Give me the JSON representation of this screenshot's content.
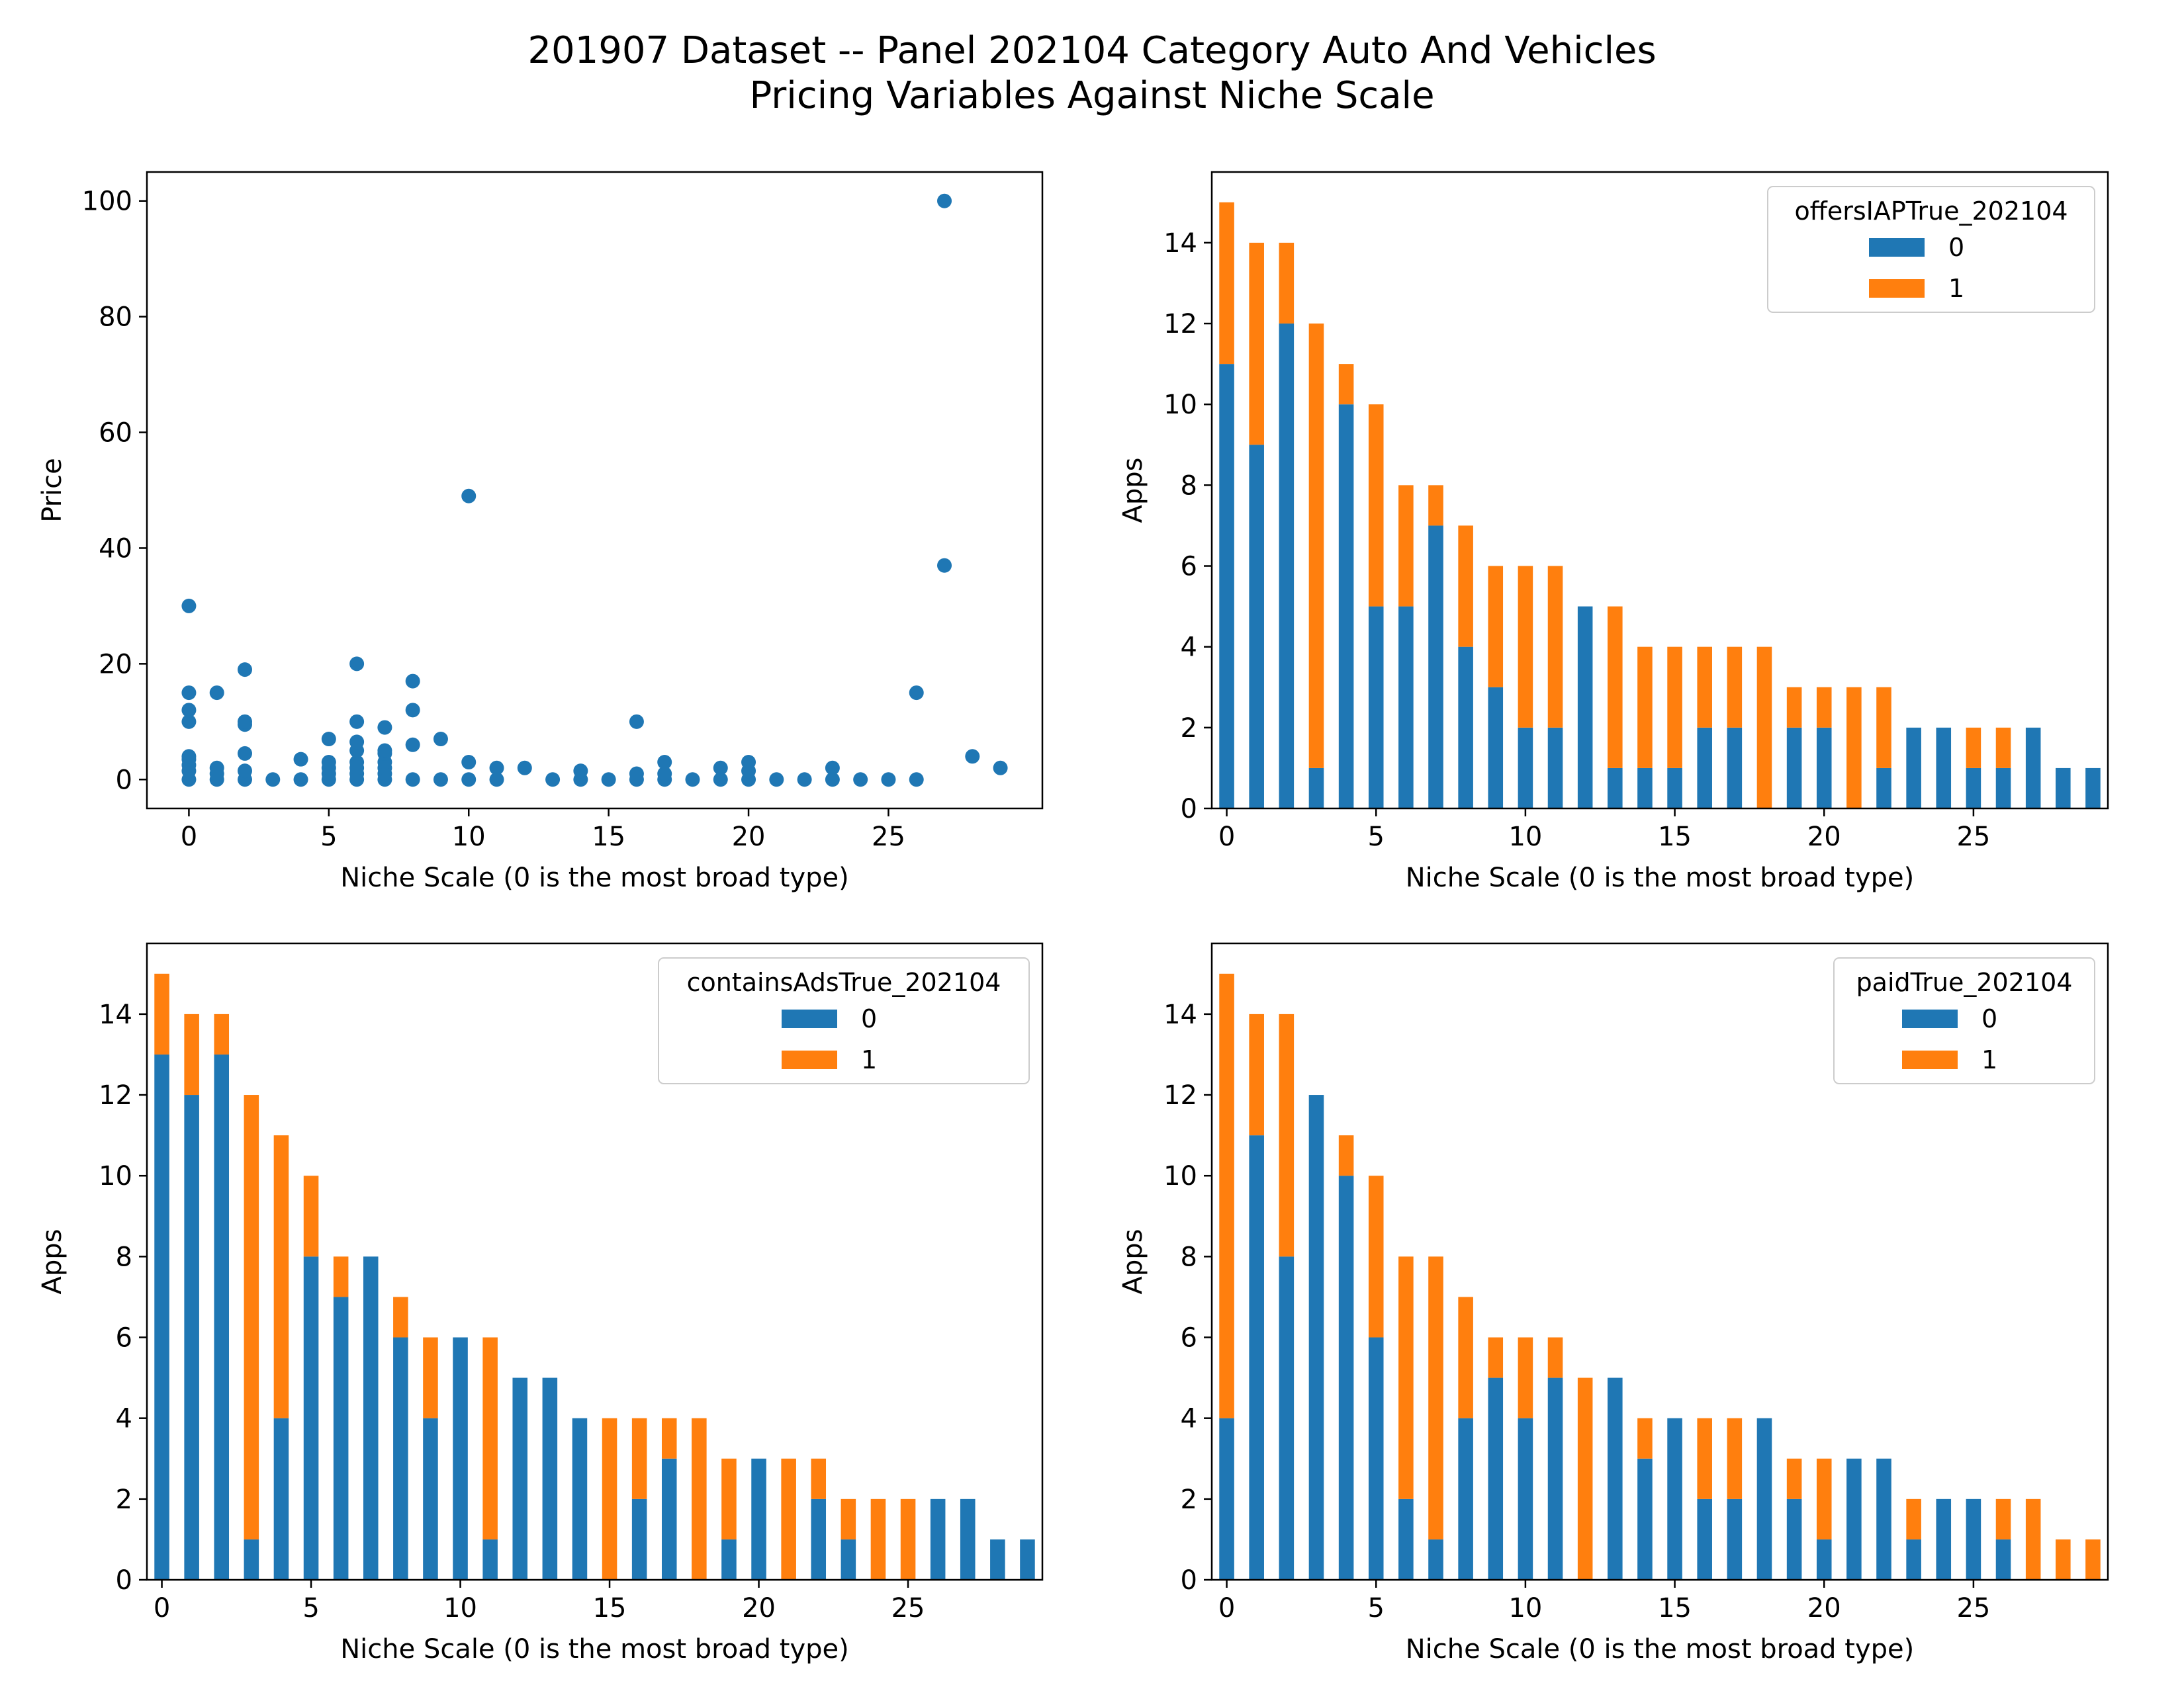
{
  "figure": {
    "title_line1": "201907 Dataset -- Panel 202104 Category Auto And Vehicles",
    "title_line2": "Pricing Variables Against Niche Scale"
  },
  "colors": {
    "series0": "#1f77b4",
    "series1": "#ff7f0e"
  },
  "chart_data": [
    {
      "type": "scatter",
      "xlabel": "Niche Scale (0 is the most broad type)",
      "ylabel": "Price",
      "xlim": [
        -1.5,
        30.5
      ],
      "ylim": [
        -5,
        105
      ],
      "xticks": [
        0,
        5,
        10,
        15,
        20,
        25
      ],
      "yticks": [
        0,
        20,
        40,
        60,
        80,
        100
      ],
      "points": [
        [
          0,
          0
        ],
        [
          0,
          1.5
        ],
        [
          0,
          2.5
        ],
        [
          0,
          3.5
        ],
        [
          0,
          4
        ],
        [
          0,
          10
        ],
        [
          0,
          12
        ],
        [
          0,
          15
        ],
        [
          0,
          30
        ],
        [
          1,
          0
        ],
        [
          1,
          1
        ],
        [
          1,
          2
        ],
        [
          1,
          15
        ],
        [
          2,
          0
        ],
        [
          2,
          1.5
        ],
        [
          2,
          4.5
        ],
        [
          2,
          9.5
        ],
        [
          2,
          10
        ],
        [
          2,
          19
        ],
        [
          3,
          0
        ],
        [
          4,
          0
        ],
        [
          4,
          3.5
        ],
        [
          5,
          0
        ],
        [
          5,
          1
        ],
        [
          5,
          2
        ],
        [
          5,
          3
        ],
        [
          5,
          7
        ],
        [
          6,
          0
        ],
        [
          6,
          1
        ],
        [
          6,
          2
        ],
        [
          6,
          3
        ],
        [
          6,
          5
        ],
        [
          6,
          6.5
        ],
        [
          6,
          10
        ],
        [
          6,
          20
        ],
        [
          7,
          0
        ],
        [
          7,
          1
        ],
        [
          7,
          2
        ],
        [
          7,
          3
        ],
        [
          7,
          4.5
        ],
        [
          7,
          5
        ],
        [
          7,
          9
        ],
        [
          8,
          0
        ],
        [
          8,
          6
        ],
        [
          8,
          12
        ],
        [
          8,
          17
        ],
        [
          9,
          0
        ],
        [
          9,
          7
        ],
        [
          10,
          0
        ],
        [
          10,
          3
        ],
        [
          10,
          49
        ],
        [
          11,
          0
        ],
        [
          11,
          2
        ],
        [
          12,
          2
        ],
        [
          13,
          0
        ],
        [
          14,
          0
        ],
        [
          14,
          1.5
        ],
        [
          15,
          0
        ],
        [
          16,
          0
        ],
        [
          16,
          1
        ],
        [
          16,
          10
        ],
        [
          17,
          0
        ],
        [
          17,
          1
        ],
        [
          17,
          3
        ],
        [
          18,
          0
        ],
        [
          19,
          0
        ],
        [
          19,
          2
        ],
        [
          20,
          0
        ],
        [
          20,
          1.5
        ],
        [
          20,
          3
        ],
        [
          21,
          0
        ],
        [
          22,
          0
        ],
        [
          23,
          0
        ],
        [
          23,
          2
        ],
        [
          24,
          0
        ],
        [
          25,
          0
        ],
        [
          26,
          0
        ],
        [
          26,
          15
        ],
        [
          27,
          37
        ],
        [
          27,
          100
        ],
        [
          28,
          4
        ],
        [
          29,
          2
        ]
      ]
    },
    {
      "type": "bar",
      "stacked": true,
      "xlabel": "Niche Scale (0 is the most broad type)",
      "ylabel": "Apps",
      "ylim": [
        0,
        15.75
      ],
      "xticks": [
        0,
        5,
        10,
        15,
        20,
        25
      ],
      "yticks": [
        0,
        2,
        4,
        6,
        8,
        10,
        12,
        14
      ],
      "legend_title": "offersIAPTrue_202104",
      "legend_loc": "upper right",
      "categories": [
        0,
        1,
        2,
        3,
        4,
        5,
        6,
        7,
        8,
        9,
        10,
        11,
        12,
        13,
        14,
        15,
        16,
        17,
        18,
        19,
        20,
        21,
        22,
        23,
        24,
        25,
        26,
        27,
        28,
        29
      ],
      "series": [
        {
          "name": "0",
          "values": [
            11,
            9,
            12,
            1,
            10,
            5,
            5,
            7,
            4,
            3,
            2,
            2,
            5,
            1,
            1,
            1,
            2,
            2,
            0,
            2,
            2,
            0,
            1,
            2,
            2,
            1,
            1,
            2,
            1,
            1
          ]
        },
        {
          "name": "1",
          "values": [
            4,
            5,
            2,
            11,
            1,
            5,
            3,
            1,
            3,
            3,
            4,
            4,
            0,
            4,
            3,
            3,
            2,
            2,
            4,
            1,
            1,
            3,
            2,
            0,
            0,
            1,
            1,
            0,
            0,
            0
          ]
        }
      ]
    },
    {
      "type": "bar",
      "stacked": true,
      "xlabel": "Niche Scale (0 is the most broad type)",
      "ylabel": "Apps",
      "ylim": [
        0,
        15.75
      ],
      "xticks": [
        0,
        5,
        10,
        15,
        20,
        25
      ],
      "yticks": [
        0,
        2,
        4,
        6,
        8,
        10,
        12,
        14
      ],
      "legend_title": "containsAdsTrue_202104",
      "legend_loc": "upper right",
      "categories": [
        0,
        1,
        2,
        3,
        4,
        5,
        6,
        7,
        8,
        9,
        10,
        11,
        12,
        13,
        14,
        15,
        16,
        17,
        18,
        19,
        20,
        21,
        22,
        23,
        24,
        25,
        26,
        27,
        28,
        29
      ],
      "series": [
        {
          "name": "0",
          "values": [
            13,
            12,
            13,
            1,
            4,
            8,
            7,
            8,
            6,
            4,
            6,
            1,
            5,
            5,
            4,
            0,
            2,
            3,
            0,
            1,
            3,
            0,
            2,
            1,
            0,
            0,
            2,
            2,
            1,
            1
          ]
        },
        {
          "name": "1",
          "values": [
            2,
            2,
            1,
            11,
            7,
            2,
            1,
            0,
            1,
            2,
            0,
            5,
            0,
            0,
            0,
            4,
            2,
            1,
            4,
            2,
            0,
            3,
            1,
            1,
            2,
            2,
            0,
            0,
            0,
            0
          ]
        }
      ]
    },
    {
      "type": "bar",
      "stacked": true,
      "xlabel": "Niche Scale (0 is the most broad type)",
      "ylabel": "Apps",
      "ylim": [
        0,
        15.75
      ],
      "xticks": [
        0,
        5,
        10,
        15,
        20,
        25
      ],
      "yticks": [
        0,
        2,
        4,
        6,
        8,
        10,
        12,
        14
      ],
      "legend_title": "paidTrue_202104",
      "legend_loc": "upper right",
      "categories": [
        0,
        1,
        2,
        3,
        4,
        5,
        6,
        7,
        8,
        9,
        10,
        11,
        12,
        13,
        14,
        15,
        16,
        17,
        18,
        19,
        20,
        21,
        22,
        23,
        24,
        25,
        26,
        27,
        28,
        29
      ],
      "series": [
        {
          "name": "0",
          "values": [
            4,
            11,
            8,
            12,
            10,
            6,
            2,
            1,
            4,
            5,
            4,
            5,
            0,
            5,
            3,
            4,
            2,
            2,
            4,
            2,
            1,
            3,
            3,
            1,
            2,
            2,
            1,
            0,
            0,
            0
          ]
        },
        {
          "name": "1",
          "values": [
            11,
            3,
            6,
            0,
            1,
            4,
            6,
            7,
            3,
            1,
            2,
            1,
            5,
            0,
            1,
            0,
            2,
            2,
            0,
            1,
            2,
            0,
            0,
            1,
            0,
            0,
            1,
            2,
            1,
            1
          ]
        }
      ]
    }
  ]
}
